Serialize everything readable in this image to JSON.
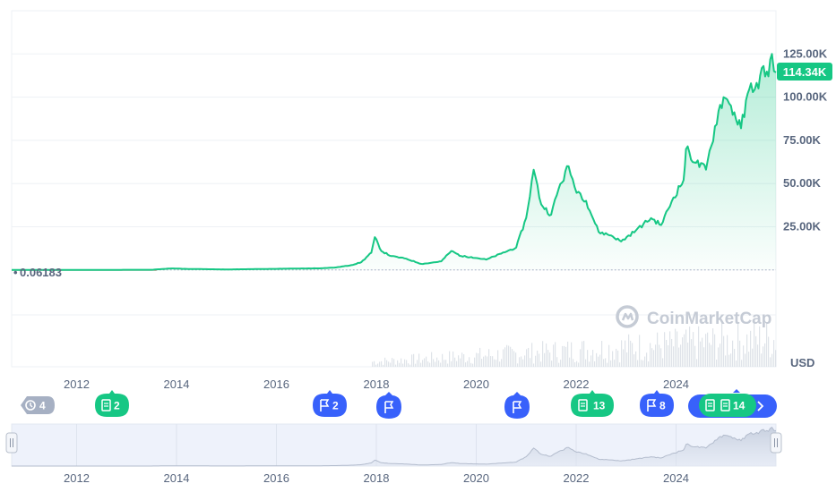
{
  "watermark": "CoinMarketCap",
  "chart_data": {
    "type": "area",
    "currency_label": "USD",
    "current_price_label": "114.34K",
    "baseline_label": "0.06183",
    "yticks": [
      {
        "value": 125000,
        "label": "125.00K"
      },
      {
        "value": 100000,
        "label": "100.00K"
      },
      {
        "value": 75000,
        "label": "75.00K"
      },
      {
        "value": 50000,
        "label": "50.00K"
      },
      {
        "value": 25000,
        "label": "25.00K"
      }
    ],
    "xticks": [
      "2012",
      "2014",
      "2016",
      "2018",
      "2020",
      "2022",
      "2024"
    ],
    "xlim": [
      2010.7,
      2026.0
    ],
    "ylim": [
      -56000,
      150000
    ],
    "grid": true,
    "colors": {
      "line": "#16c784",
      "fill_top": "#16c784",
      "baseline": "#cc4b4b",
      "grid": "#eef1f5",
      "tick": "#58667e"
    },
    "series": [
      {
        "x": [
          2010.7,
          2011.5,
          2012.5,
          2013.0,
          2013.5,
          2013.9,
          2014.2,
          2015.0,
          2016.0,
          2016.9,
          2017.2,
          2017.5,
          2017.7,
          2017.9,
          2017.97,
          2018.1,
          2018.3,
          2018.6,
          2018.9,
          2019.0,
          2019.3,
          2019.5,
          2019.7,
          2019.9,
          2020.2,
          2020.5,
          2020.8,
          2021.0,
          2021.15,
          2021.3,
          2021.5,
          2021.65,
          2021.85,
          2021.97,
          2022.2,
          2022.45,
          2022.7,
          2022.9,
          2023.2,
          2023.5,
          2023.7,
          2023.95,
          2024.15,
          2024.2,
          2024.4,
          2024.6,
          2024.85,
          2024.95,
          2025.1,
          2025.3,
          2025.5,
          2025.65,
          2025.75,
          2025.85,
          2025.92,
          2026.0
        ],
        "y": [
          0.06,
          5,
          10,
          100,
          120,
          900,
          600,
          300,
          650,
          1000,
          1500,
          2800,
          4500,
          10000,
          19000,
          11000,
          8000,
          6500,
          3500,
          3800,
          5000,
          11000,
          8000,
          7500,
          6000,
          9500,
          13000,
          30000,
          58000,
          38000,
          32000,
          47000,
          60000,
          48000,
          40000,
          22000,
          20000,
          16500,
          23000,
          30000,
          26000,
          42000,
          52000,
          70000,
          62000,
          58000,
          92000,
          100000,
          95000,
          82000,
          108000,
          105000,
          118000,
          112000,
          125000,
          114340
        ]
      }
    ],
    "markers": [
      {
        "label": "4",
        "icon": "history-icon",
        "color": "#a6b0c3"
      },
      {
        "label": "2",
        "icon": "news-icon",
        "color": "#16c784"
      },
      {
        "label": "2",
        "icon": "flag-icon",
        "color": "#3861fb"
      },
      {
        "label": "",
        "icon": "flag-icon",
        "color": "#3861fb"
      },
      {
        "label": "",
        "icon": "flag-icon",
        "color": "#3861fb"
      },
      {
        "label": "13",
        "icon": "news-icon",
        "color": "#16c784"
      },
      {
        "label": "8",
        "icon": "flag-icon",
        "color": "#3861fb"
      },
      {
        "label": "14",
        "icon": "news-icon",
        "color": "#16c784"
      }
    ]
  }
}
